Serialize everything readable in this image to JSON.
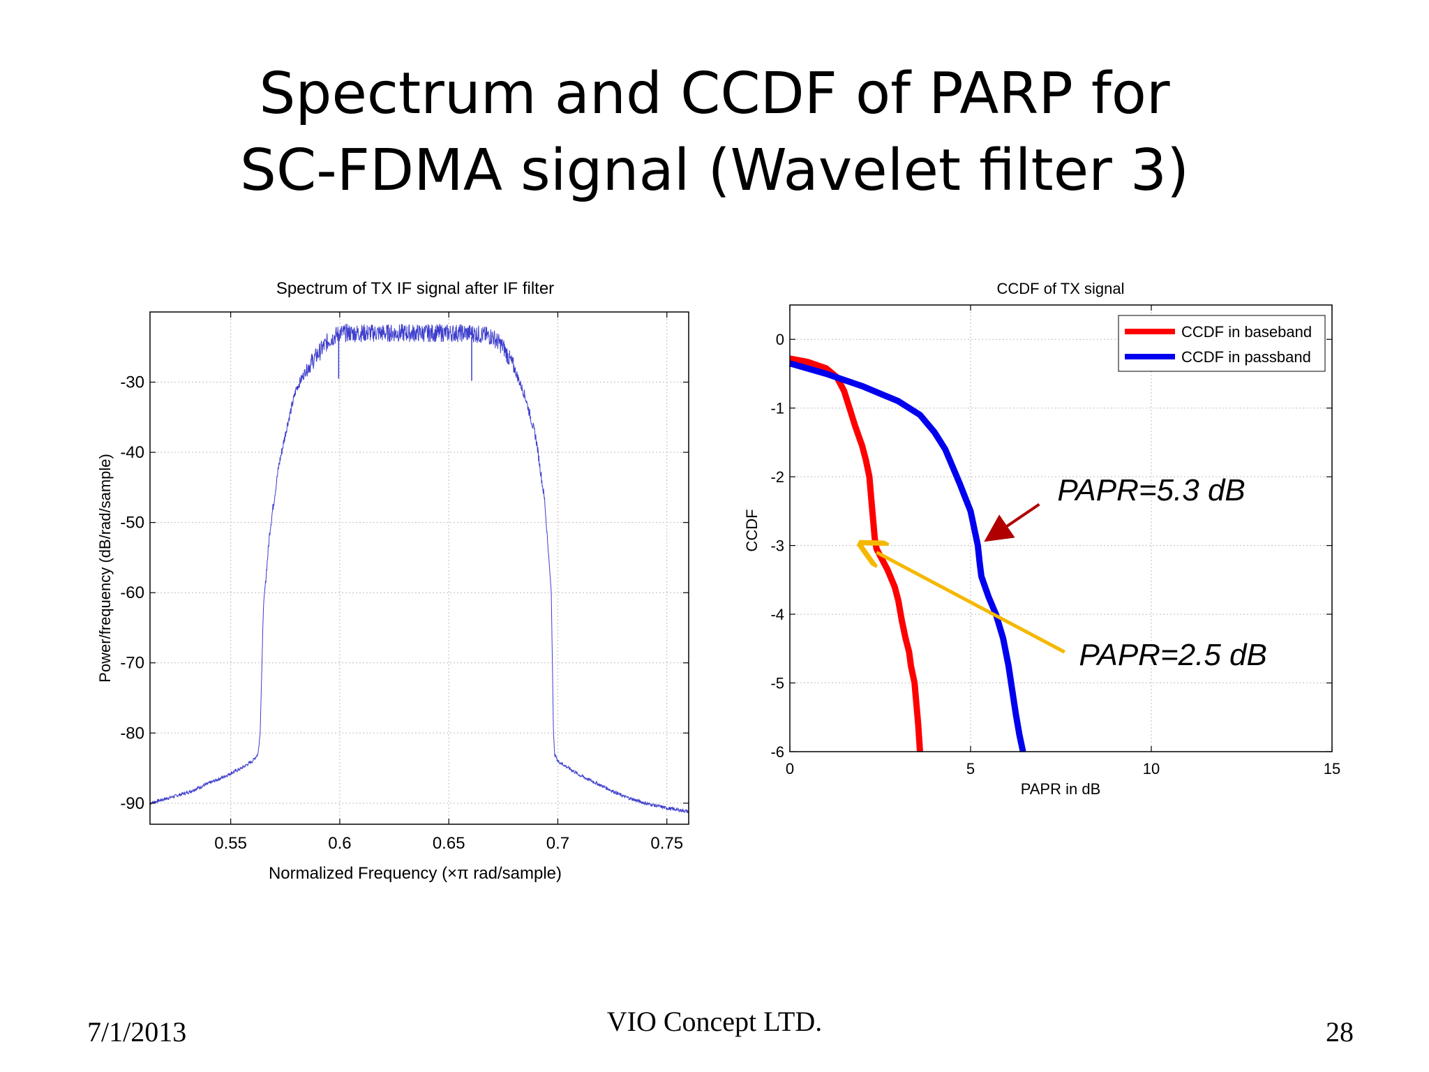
{
  "slide": {
    "title_line1": "Spectrum and CCDF of PARP for",
    "title_line2": "SC-FDMA signal (Wavelet filter 3)",
    "date": "7/1/2013",
    "company": "VIO Concept LTD.",
    "page": "28"
  },
  "chart_data": [
    {
      "type": "line",
      "title": "Spectrum of TX IF signal after IF filter",
      "xlabel": "Normalized Frequency  (×π rad/sample)",
      "ylabel": "Power/frequency (dB/rad/sample)",
      "xlim": [
        0.513,
        0.76
      ],
      "ylim": [
        -93,
        -20
      ],
      "xticks": [
        0.55,
        0.6,
        0.65,
        0.7,
        0.75
      ],
      "xtick_labels": [
        "0.55",
        "0.6",
        "0.65",
        "0.7",
        "0.75"
      ],
      "yticks": [
        -90,
        -80,
        -70,
        -60,
        -50,
        -40,
        -30
      ],
      "ytick_labels": [
        "-90",
        "-80",
        "-70",
        "-60",
        "-50",
        "-40",
        "-30"
      ],
      "grid": true,
      "color": "#3d3dcc",
      "series": [
        {
          "x": [
            0.513,
            0.53,
            0.545,
            0.555,
            0.56,
            0.5625,
            0.5635,
            0.565,
            0.568,
            0.572,
            0.576,
            0.58,
            0.585,
            0.59,
            0.595,
            0.6,
            0.61,
            0.62,
            0.63,
            0.64,
            0.65,
            0.66,
            0.67,
            0.675,
            0.68,
            0.685,
            0.69,
            0.694,
            0.697,
            0.698,
            0.6985,
            0.7,
            0.71,
            0.72,
            0.73,
            0.74,
            0.75,
            0.76
          ],
          "y": [
            -90,
            -88.5,
            -86.5,
            -85,
            -84,
            -83,
            -80,
            -62,
            -51,
            -42,
            -36,
            -31,
            -28,
            -26,
            -24,
            -23,
            -23,
            -23,
            -23,
            -23,
            -23,
            -23,
            -23.5,
            -25,
            -28,
            -32,
            -38,
            -47,
            -60,
            -80,
            -83,
            -84,
            -86,
            -87.5,
            -89,
            -90,
            -90.7,
            -91.2
          ]
        }
      ],
      "dips": [
        {
          "x": 0.5995,
          "y": -29.5
        },
        {
          "x": 0.6605,
          "y": -29.8
        }
      ]
    },
    {
      "type": "line",
      "title": "CCDF of TX signal",
      "xlabel": "PAPR in dB",
      "ylabel": "CCDF",
      "xlim": [
        0,
        15
      ],
      "ylim": [
        -6,
        0.5
      ],
      "xticks": [
        0,
        5,
        10,
        15
      ],
      "xtick_labels": [
        "0",
        "5",
        "10",
        "15"
      ],
      "yticks": [
        -6,
        -5,
        -4,
        -3,
        -2,
        -1,
        0
      ],
      "ytick_labels": [
        "-6",
        "-5",
        "-4",
        "-3",
        "-2",
        "-1",
        "0"
      ],
      "grid": true,
      "legend_position": "top-right",
      "series": [
        {
          "name": "CCDF in baseband",
          "color": "#ff0000",
          "x": [
            0,
            0.5,
            1.0,
            1.3,
            1.5,
            1.65,
            1.8,
            1.9,
            2.0,
            2.1,
            2.2,
            2.25,
            2.3,
            2.35,
            2.4,
            2.5,
            2.7,
            2.9,
            3.0,
            3.1,
            3.2,
            3.3,
            3.35,
            3.45,
            3.5,
            3.55,
            3.6
          ],
          "y": [
            -0.28,
            -0.33,
            -0.42,
            -0.55,
            -0.75,
            -1.0,
            -1.25,
            -1.4,
            -1.55,
            -1.75,
            -2.0,
            -2.3,
            -2.6,
            -2.9,
            -3.05,
            -3.15,
            -3.35,
            -3.6,
            -3.8,
            -4.1,
            -4.35,
            -4.55,
            -4.75,
            -5.0,
            -5.3,
            -5.6,
            -6.0
          ]
        },
        {
          "name": "CCDF in passband",
          "color": "#0000ee",
          "x": [
            0,
            1.0,
            2.0,
            3.0,
            3.6,
            4.0,
            4.3,
            4.5,
            4.7,
            4.85,
            5.0,
            5.1,
            5.2,
            5.25,
            5.3,
            5.4,
            5.5,
            5.7,
            5.9,
            6.05,
            6.15,
            6.25,
            6.35,
            6.45
          ],
          "y": [
            -0.35,
            -0.5,
            -0.68,
            -0.9,
            -1.1,
            -1.35,
            -1.6,
            -1.85,
            -2.1,
            -2.3,
            -2.5,
            -2.75,
            -3.0,
            -3.25,
            -3.45,
            -3.6,
            -3.75,
            -4.0,
            -4.35,
            -4.75,
            -5.1,
            -5.45,
            -5.75,
            -6.0
          ]
        }
      ],
      "annotations": [
        {
          "text": "PAPR=5.3 dB",
          "x": 7.4,
          "y": -2.2,
          "arrow_from": [
            6.9,
            -2.4
          ],
          "arrow_to": [
            5.5,
            -2.9
          ],
          "arrow_color": "#b00000"
        },
        {
          "text": "PAPR=2.5 dB",
          "x": 8.0,
          "y": -4.6,
          "arrow_from": [
            7.6,
            -4.55
          ],
          "arrow_to": [
            2.4,
            -3.1
          ],
          "arrow_color": "#f5b800"
        }
      ]
    }
  ]
}
